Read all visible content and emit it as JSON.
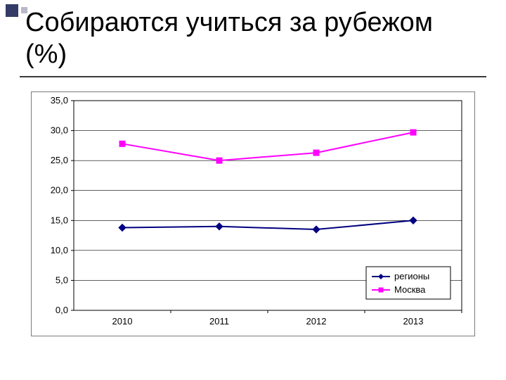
{
  "slide": {
    "title": "Собираются учиться за рубежом (%)"
  },
  "chart": {
    "type": "line",
    "categories": [
      "2010",
      "2011",
      "2012",
      "2013"
    ],
    "ylim": [
      0,
      35
    ],
    "ytick_step": 5,
    "ytick_labels": [
      "0,0",
      "5,0",
      "10,0",
      "15,0",
      "20,0",
      "25,0",
      "30,0",
      "35,0"
    ],
    "plot_background": "#ffffff",
    "gridline_color": "#000000",
    "axis_color": "#000000",
    "series": [
      {
        "name": "регионы",
        "values": [
          13.8,
          14.0,
          13.5,
          15.0
        ],
        "line_color": "#000080",
        "marker_color": "#000080",
        "marker": "diamond"
      },
      {
        "name": "Москва",
        "values": [
          27.8,
          25.0,
          26.3,
          29.7
        ],
        "line_color": "#ff00ff",
        "marker_color": "#ff00ff",
        "marker": "square"
      }
    ],
    "legend_position": "bottom-right",
    "title_fontsize": 38,
    "label_fontsize": 13
  }
}
